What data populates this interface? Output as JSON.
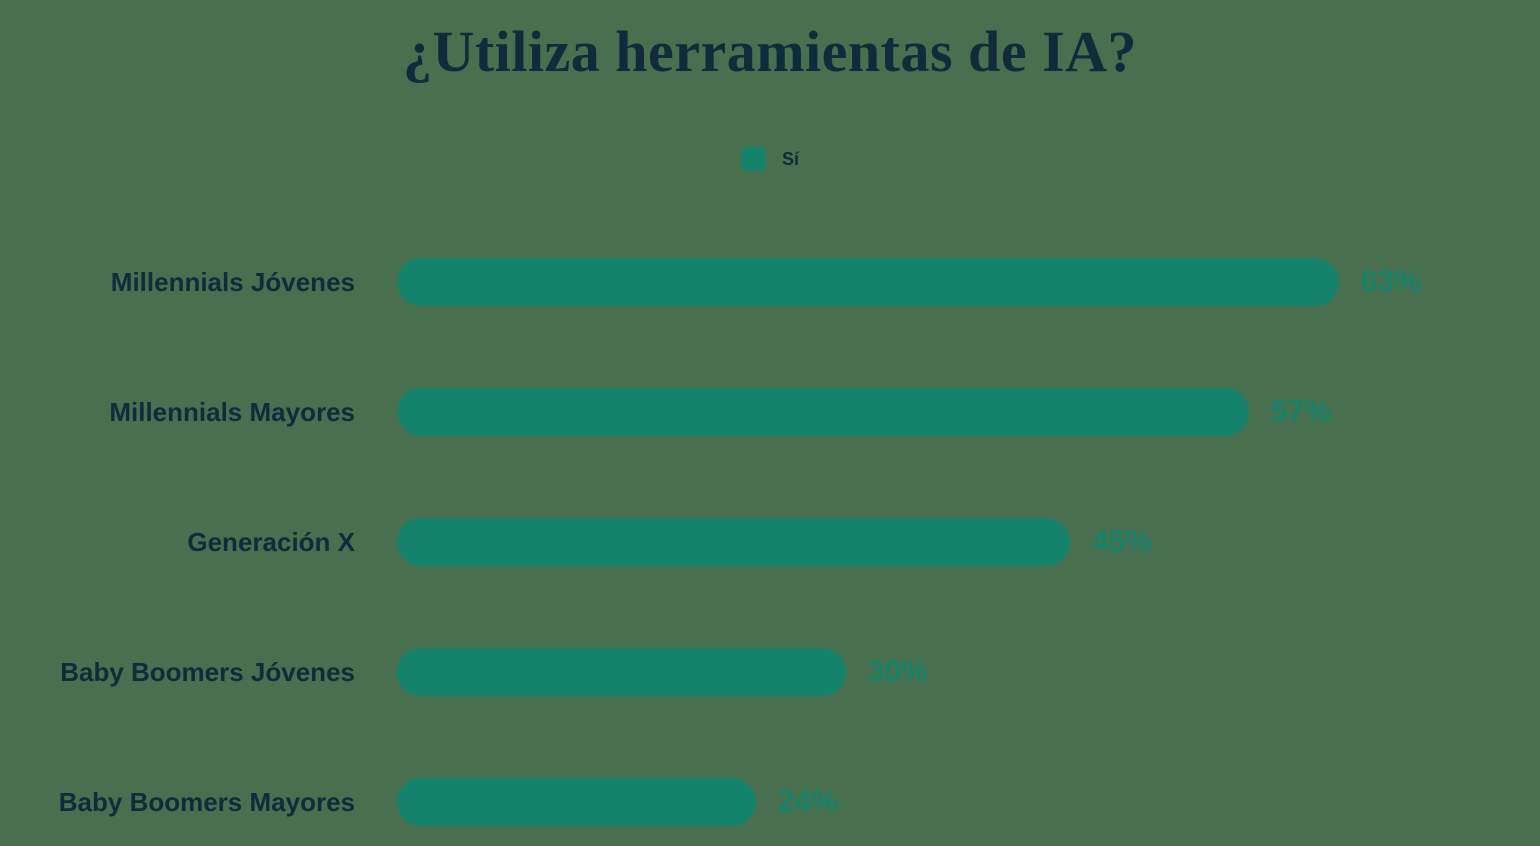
{
  "title": "¿Utiliza herramientas de IA?",
  "legend": {
    "label": "Sí",
    "swatch_color": "#14826B"
  },
  "colors": {
    "background": "#48704F",
    "bar": "#14826B",
    "dark_text": "#112B3C",
    "value_text": "#14826B"
  },
  "chart_data": {
    "type": "bar",
    "orientation": "horizontal",
    "title": "¿Utiliza herramientas de IA?",
    "categories": [
      "Millennials Jóvenes",
      "Millennials Mayores",
      "Generación X",
      "Baby Boomers Jóvenes",
      "Baby Boomers Mayores"
    ],
    "series": [
      {
        "name": "Sí",
        "values": [
          63,
          57,
          45,
          30,
          24
        ]
      }
    ],
    "value_labels": [
      "63%",
      "57%",
      "45%",
      "30%",
      "24%"
    ],
    "xlabel": "",
    "ylabel": "",
    "xlim": [
      0,
      100
    ],
    "grid": false,
    "legend_position": "top-center"
  }
}
